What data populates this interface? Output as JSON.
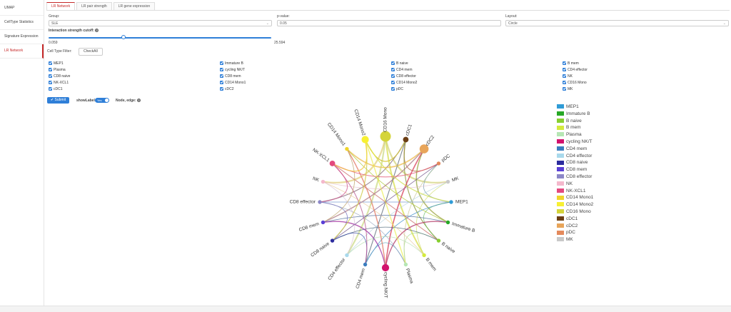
{
  "sidebar": {
    "items": [
      {
        "label": "UMAP",
        "active": false
      },
      {
        "label": "CellType Statistics",
        "active": false
      },
      {
        "label": "Signature Expression",
        "active": false
      },
      {
        "label": "LR Network",
        "active": true
      }
    ]
  },
  "tabs": [
    {
      "label": "LR Network",
      "active": true
    },
    {
      "label": "LR pair strength",
      "active": false
    },
    {
      "label": "LR gene expression",
      "active": false
    }
  ],
  "form": {
    "group_label": "Group:",
    "group_value": "SLE",
    "pvalue_label": "p-value:",
    "pvalue_value": "0.05",
    "layout_label": "Layout:",
    "layout_value": "Circle",
    "cutoff_label": "Interaction strength cutoff:",
    "cutoff_min": "0.059",
    "cutoff_max": "25.594",
    "cutoff_value_fraction": 0.33,
    "celltype_filter_label": "Cell Type Filter:",
    "checkall_label": "CheckAll",
    "submit_label": "Submit",
    "showlabel_label": "showLabel:",
    "toggle_label": "Yes",
    "node_edge_label": "Node, edge:"
  },
  "celltypes": [
    [
      "MEP1",
      "Immature B",
      "B naive",
      "B mem"
    ],
    [
      "Plasma",
      "cycling NK/T",
      "CD4 mem",
      "CD4 effector"
    ],
    [
      "CD8 naive",
      "CD8 mem",
      "CD8 effector",
      "NK"
    ],
    [
      "NK-XCL1",
      "CD14 Mono1",
      "CD14 Mono2",
      "CD16 Mono"
    ],
    [
      "cDC1",
      "cDC2",
      "pDC",
      "MK"
    ]
  ],
  "chart_data": {
    "type": "chord",
    "nodes": [
      {
        "name": "MEP1",
        "color": "#2f9bd6",
        "size": 1
      },
      {
        "name": "Immature B",
        "color": "#27a826",
        "size": 1
      },
      {
        "name": "B naive",
        "color": "#86cf2f",
        "size": 1
      },
      {
        "name": "B mem",
        "color": "#d4ea3e",
        "size": 1
      },
      {
        "name": "Plasma",
        "color": "#b6e6b4",
        "size": 1
      },
      {
        "name": "cycling NK/T",
        "color": "#d2126d",
        "size": 3
      },
      {
        "name": "CD4 mem",
        "color": "#3b7dbf",
        "size": 1
      },
      {
        "name": "CD4 effector",
        "color": "#a9d9ec",
        "size": 1
      },
      {
        "name": "CD8 naive",
        "color": "#2c2c9e",
        "size": 1
      },
      {
        "name": "CD8 mem",
        "color": "#5a3fd6",
        "size": 1
      },
      {
        "name": "CD8 effector",
        "color": "#8c87c8",
        "size": 1
      },
      {
        "name": "NK",
        "color": "#f4b8cc",
        "size": 1
      },
      {
        "name": "NK-XCL1",
        "color": "#e3497e",
        "size": 2
      },
      {
        "name": "CD14 Mono1",
        "color": "#f0d52a",
        "size": 1
      },
      {
        "name": "CD14 Mono2",
        "color": "#f7f033",
        "size": 3
      },
      {
        "name": "CD16 Mono",
        "color": "#d4d43a",
        "size": 5
      },
      {
        "name": "cDC1",
        "color": "#6b3e14",
        "size": 2
      },
      {
        "name": "cDC2",
        "color": "#e8a55a",
        "size": 4
      },
      {
        "name": "pDC",
        "color": "#e48a5c",
        "size": 1
      },
      {
        "name": "MK",
        "color": "#c9c9c9",
        "size": 1
      }
    ]
  }
}
